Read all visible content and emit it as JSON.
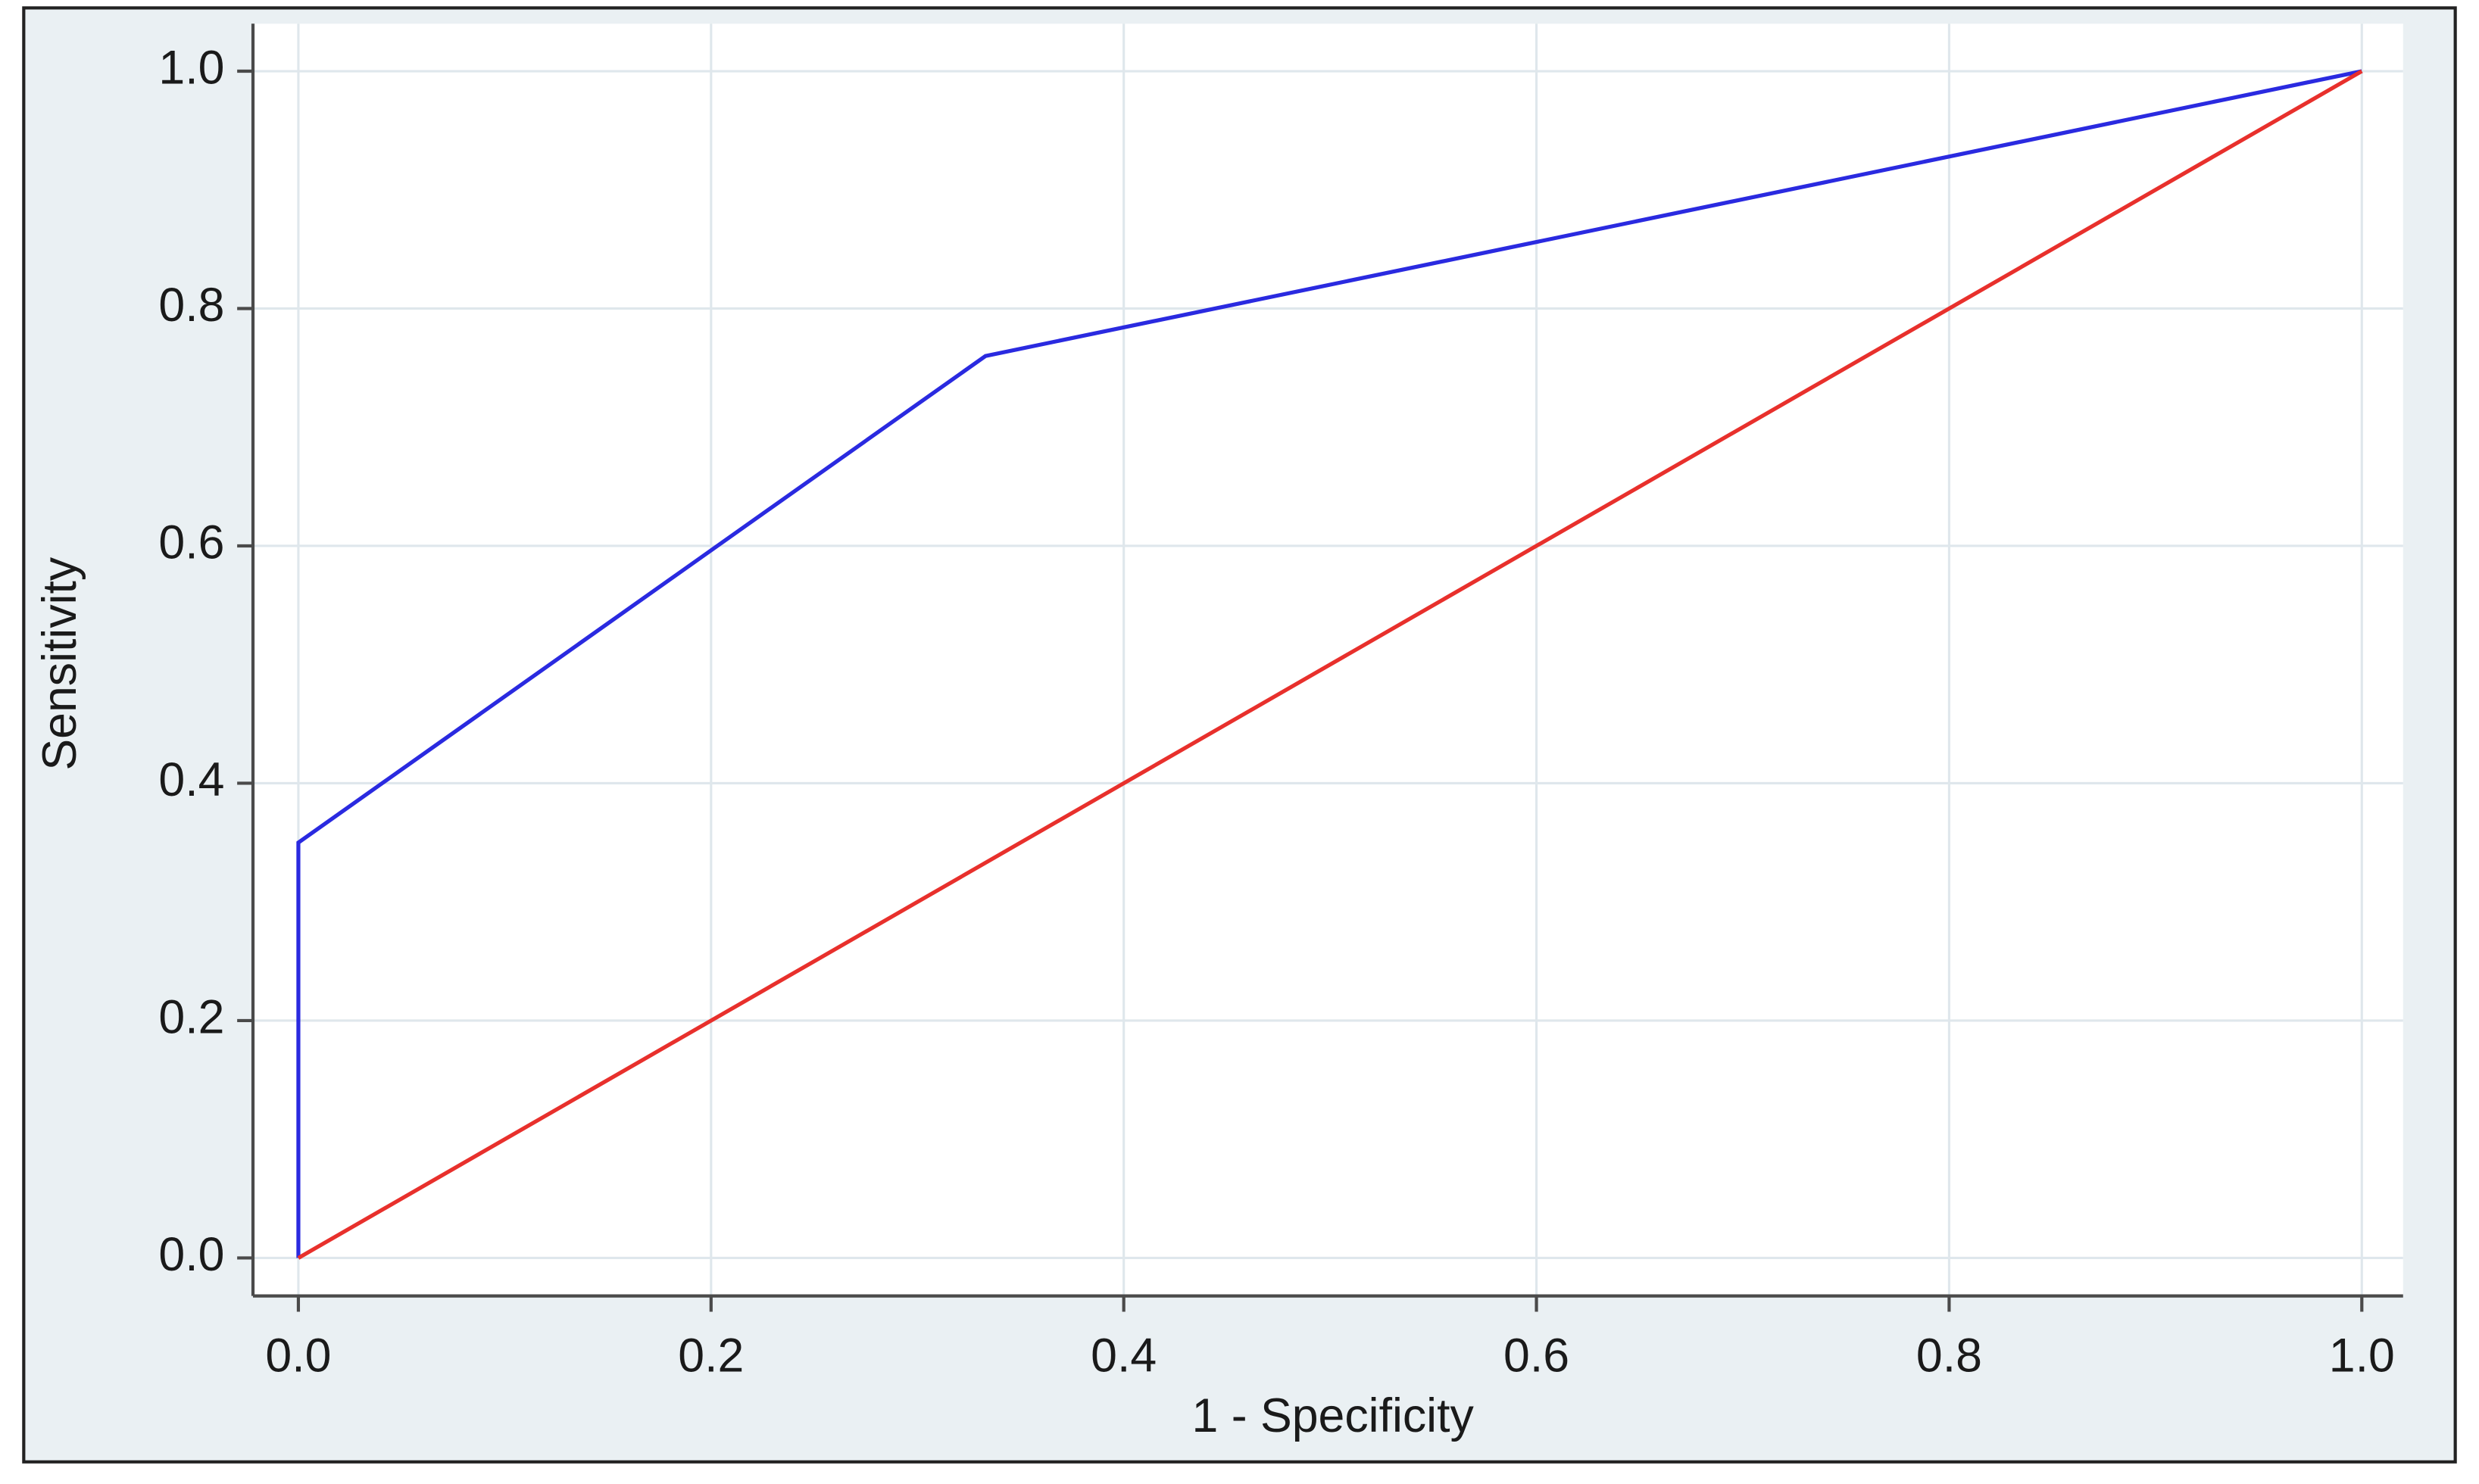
{
  "chart_data": {
    "type": "line",
    "xlabel": "1 - Specificity",
    "ylabel": "Sensitivity",
    "series": [
      {
        "color": "#2a2ae0",
        "x": [
          0,
          0,
          0.333,
          1
        ],
        "values": [
          0,
          0.35,
          0.76,
          1
        ]
      },
      {
        "color": "#e8302c",
        "x": [
          0,
          1
        ],
        "values": [
          0,
          1
        ]
      }
    ],
    "xlim": [
      -0.022,
      1.02
    ],
    "ylim": [
      -0.032,
      1.04
    ],
    "xticks": [
      {
        "value": 0,
        "label": "0.0"
      },
      0.2,
      0.4,
      0.6,
      0.8,
      {
        "value": 1,
        "label": "1.0"
      }
    ],
    "yticks": [
      {
        "value": 0,
        "label": "0.0"
      },
      0.2,
      0.4,
      0.6,
      0.8,
      {
        "value": 1,
        "label": "1.0"
      }
    ],
    "grid": true
  }
}
